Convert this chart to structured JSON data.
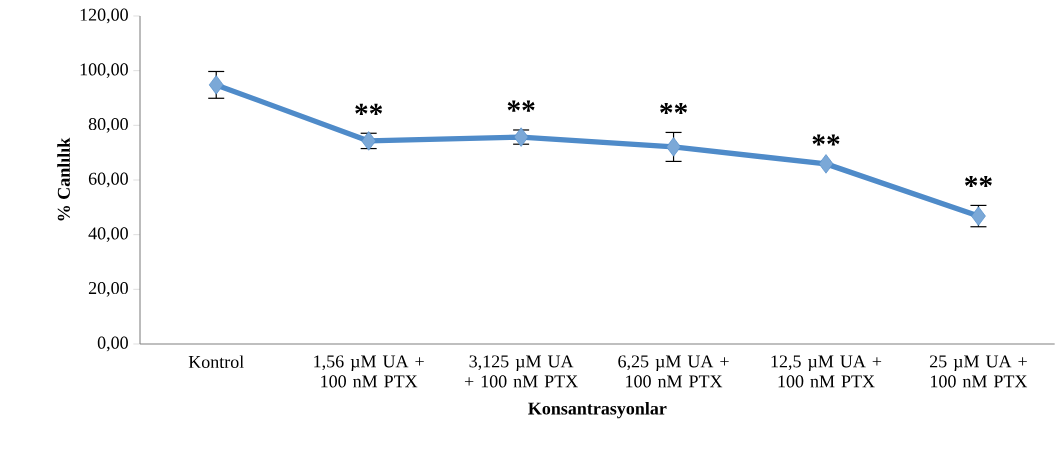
{
  "chart_data": {
    "type": "line",
    "xlabel": "Konsantrasyonlar",
    "ylabel": "% Canlılık",
    "categories": [
      "Kontrol",
      "1,56 µM UA + 100 nM PTX",
      "3,125 µM UA + 100 nM PTX",
      "6,25 µM UA + 100 nM PTX",
      "12,5 µM UA + 100 nM PTX",
      "25 µM UA + 100 nM PTX"
    ],
    "values": [
      94.8,
      74.3,
      75.7,
      72.1,
      65.9,
      46.8
    ],
    "errors": [
      4.9,
      2.8,
      2.6,
      5.3,
      null,
      3.9
    ],
    "color": "#4f8bc9",
    "marker": "diamond",
    "grid": false,
    "ylim": [
      0,
      120
    ],
    "yticks": [
      {
        "value": 0,
        "label": "0,00"
      },
      {
        "value": 20,
        "label": "20,00"
      },
      {
        "value": 40,
        "label": "40,00"
      },
      {
        "value": 60,
        "label": "60,00"
      },
      {
        "value": 80,
        "label": "80,00"
      },
      {
        "value": 100,
        "label": "100,00"
      },
      {
        "value": 120,
        "label": "120,00"
      }
    ],
    "annotations": [
      "**",
      "**",
      "**",
      "**",
      "**"
    ]
  }
}
